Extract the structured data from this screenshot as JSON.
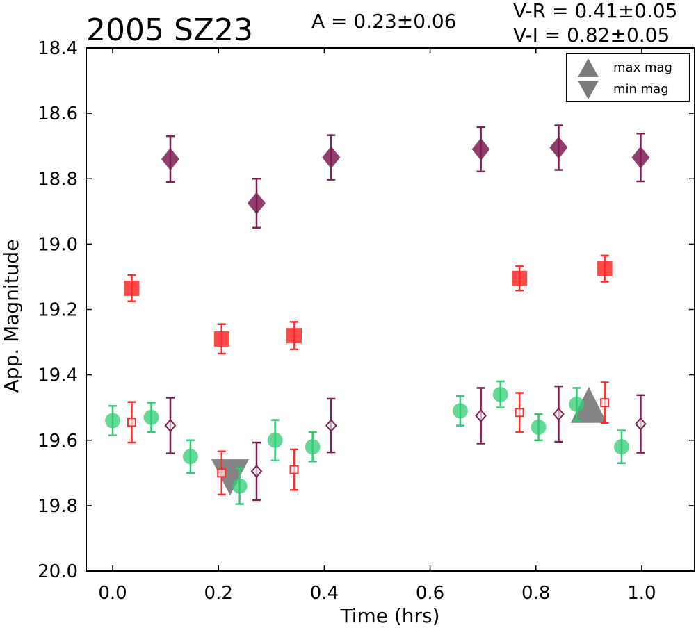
{
  "chart_data": {
    "type": "scatter",
    "title": "2005 SZ23",
    "amplitude_text": "A  = 0.23±0.06",
    "color_index_lines": [
      "V-R = 0.41±0.05",
      "V-I  = 0.82±0.05"
    ],
    "xlabel": "Time (hrs)",
    "ylabel": "App. Magnitude",
    "xlim": [
      -0.05,
      1.1
    ],
    "ylim": [
      20.0,
      18.4
    ],
    "y_inverted": true,
    "xticks": [
      "0.0",
      "0.2",
      "0.4",
      "0.6",
      "0.8",
      "1.0"
    ],
    "yticks": [
      "18.4",
      "18.6",
      "18.8",
      "19.0",
      "19.2",
      "19.4",
      "19.6",
      "19.8",
      "20.0"
    ],
    "grid": false,
    "legend": {
      "position": "top-right",
      "entries": [
        "max mag",
        "min mag"
      ]
    },
    "colors": {
      "green": "#2ecc71",
      "red": "#ff2a2a",
      "purple": "#7d1c54",
      "marker_gray": "#7a7a7a"
    },
    "series": [
      {
        "marker": "filled-circle",
        "color": "#2ecc71",
        "points": [
          {
            "x": 0.0,
            "y": 19.54,
            "err": 0.045
          },
          {
            "x": 0.073,
            "y": 19.53,
            "err": 0.045
          },
          {
            "x": 0.147,
            "y": 19.65,
            "err": 0.05
          },
          {
            "x": 0.24,
            "y": 19.74,
            "err": 0.055
          },
          {
            "x": 0.307,
            "y": 19.6,
            "err": 0.062
          },
          {
            "x": 0.378,
            "y": 19.62,
            "err": 0.045
          },
          {
            "x": 0.657,
            "y": 19.51,
            "err": 0.045
          },
          {
            "x": 0.733,
            "y": 19.46,
            "err": 0.04
          },
          {
            "x": 0.805,
            "y": 19.56,
            "err": 0.04
          },
          {
            "x": 0.877,
            "y": 19.49,
            "err": 0.05
          },
          {
            "x": 0.962,
            "y": 19.62,
            "err": 0.05
          }
        ]
      },
      {
        "marker": "filled-square",
        "color": "#ff2a2a",
        "points": [
          {
            "x": 0.036,
            "y": 19.135,
            "err": 0.04
          },
          {
            "x": 0.206,
            "y": 19.29,
            "err": 0.045
          },
          {
            "x": 0.343,
            "y": 19.28,
            "err": 0.042
          },
          {
            "x": 0.769,
            "y": 19.105,
            "err": 0.037
          },
          {
            "x": 0.93,
            "y": 19.075,
            "err": 0.04
          }
        ]
      },
      {
        "marker": "open-square",
        "color": "#ff2a2a",
        "points": [
          {
            "x": 0.036,
            "y": 19.545,
            "err": 0.062
          },
          {
            "x": 0.206,
            "y": 19.7,
            "err": 0.066
          },
          {
            "x": 0.343,
            "y": 19.69,
            "err": 0.062
          },
          {
            "x": 0.769,
            "y": 19.515,
            "err": 0.06
          },
          {
            "x": 0.93,
            "y": 19.485,
            "err": 0.062
          }
        ]
      },
      {
        "marker": "filled-diamond",
        "color": "#7d1c54",
        "points": [
          {
            "x": 0.109,
            "y": 18.74,
            "err": 0.07
          },
          {
            "x": 0.272,
            "y": 18.875,
            "err": 0.075
          },
          {
            "x": 0.413,
            "y": 18.735,
            "err": 0.068
          },
          {
            "x": 0.696,
            "y": 18.71,
            "err": 0.068
          },
          {
            "x": 0.843,
            "y": 18.705,
            "err": 0.068
          },
          {
            "x": 0.998,
            "y": 18.735,
            "err": 0.073
          }
        ]
      },
      {
        "marker": "open-diamond",
        "color": "#7d1c54",
        "points": [
          {
            "x": 0.109,
            "y": 19.555,
            "err": 0.085
          },
          {
            "x": 0.272,
            "y": 19.695,
            "err": 0.088
          },
          {
            "x": 0.413,
            "y": 19.555,
            "err": 0.082
          },
          {
            "x": 0.696,
            "y": 19.525,
            "err": 0.085
          },
          {
            "x": 0.843,
            "y": 19.52,
            "err": 0.085
          },
          {
            "x": 0.998,
            "y": 19.55,
            "err": 0.088
          }
        ]
      },
      {
        "marker": "triangle-up",
        "color": "#7a7a7a",
        "label": "max mag",
        "points": [
          {
            "x": 0.9,
            "y": 19.5
          }
        ]
      },
      {
        "marker": "triangle-down",
        "color": "#7a7a7a",
        "label": "min mag",
        "points": [
          {
            "x": 0.222,
            "y": 19.705
          }
        ]
      }
    ]
  }
}
